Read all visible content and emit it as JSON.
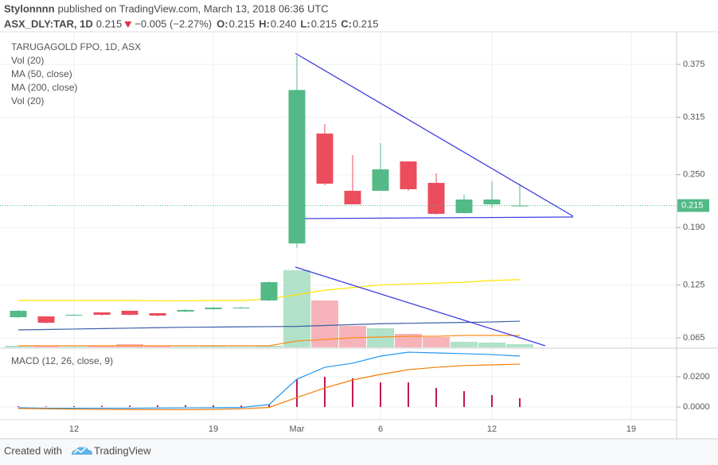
{
  "header": {
    "author": "Stylonnnn",
    "published": "published on TradingView.com, March 13, 2018 06:36 UTC"
  },
  "quote": {
    "symbol": "ASX_DLY:TAR, 1D",
    "last": "0.215",
    "change": "−0.005 (−2.27%)",
    "ohlc": [
      {
        "label": "O:",
        "value": "0.215"
      },
      {
        "label": "H:",
        "value": "0.240"
      },
      {
        "label": "L:",
        "value": "0.215"
      },
      {
        "label": "C:",
        "value": "0.215"
      }
    ]
  },
  "chart_data": [
    {
      "type": "candlestick",
      "title": "TARUGAGOLD FPO, 1D, ASX",
      "categories": [
        null,
        null,
        "12",
        null,
        null,
        null,
        null,
        "19",
        null,
        null,
        "Mar",
        null,
        null,
        "6",
        null,
        null,
        null,
        "12",
        null,
        null,
        null,
        null,
        "19"
      ],
      "open": [
        0.0884,
        0.0893,
        0.0902,
        0.0939,
        0.0957,
        0.093,
        0.0948,
        0.0975,
        0.0984,
        0.1074,
        0.172,
        0.2966,
        0.2317,
        0.2317,
        0.265,
        0.2407,
        0.2065,
        0.2164,
        0.215,
        null,
        null,
        null,
        null
      ],
      "high": [
        0.0966,
        0.0893,
        0.092,
        0.0939,
        0.0957,
        0.093,
        0.0975,
        0.1002,
        0.1002,
        0.129,
        0.385,
        0.3074,
        0.2723,
        0.2858,
        0.265,
        0.2516,
        0.2272,
        0.2425,
        0.24,
        null,
        null,
        null,
        null
      ],
      "low": [
        0.0875,
        0.0812,
        0.0902,
        0.0902,
        0.0902,
        0.0893,
        0.0939,
        0.0966,
        0.0984,
        0.1065,
        0.167,
        0.238,
        0.2164,
        0.2317,
        0.2317,
        0.2047,
        0.2056,
        0.2128,
        0.215,
        null,
        null,
        null,
        null
      ],
      "close": [
        0.0957,
        0.0821,
        0.0911,
        0.0911,
        0.0911,
        0.0902,
        0.0966,
        0.0993,
        0.0993,
        0.1281,
        0.346,
        0.2398,
        0.2164,
        0.256,
        0.2335,
        0.2056,
        0.2218,
        0.2218,
        0.215,
        null,
        null,
        null,
        null
      ],
      "up_color": "#53b987",
      "down_color": "#eb4d5c",
      "ylim": [
        0.0542,
        0.412
      ],
      "yticks": [
        0.065,
        0.125,
        {
          "value": 0.19,
          "label": "0.190"
        },
        {
          "value": 0.25,
          "label": "0.250"
        },
        0.315,
        0.375
      ],
      "last_price": 0.215,
      "grid": true,
      "volume_ylim": [
        0,
        397
      ],
      "series": [
        {
          "name": "Vol (20)",
          "kind": "volume",
          "up_color": "#a3dcc0",
          "down_color": "#f5a7ae",
          "values": [
            2,
            2,
            1,
            2,
            4,
            2,
            1,
            2,
            1,
            2,
            97,
            59,
            27,
            24,
            17,
            13,
            7,
            6,
            4,
            null,
            null,
            null,
            null
          ]
        },
        {
          "name": "MA (50, close)",
          "kind": "price-line",
          "color": "#ffe500",
          "values": [
            0.1074,
            0.1074,
            0.1074,
            0.1074,
            0.1074,
            0.107,
            0.107,
            0.1074,
            0.1074,
            0.109,
            0.114,
            0.119,
            0.122,
            0.125,
            0.126,
            0.127,
            0.128,
            0.13,
            0.131,
            null,
            null,
            null,
            null
          ]
        },
        {
          "name": "MA (200, close)",
          "kind": "price-line",
          "color": "#3d5ea8",
          "values": [
            0.074,
            0.0745,
            0.075,
            0.0755,
            0.076,
            0.0765,
            0.077,
            0.0772,
            0.0775,
            0.0777,
            0.078,
            0.079,
            0.08,
            0.081,
            0.0815,
            0.082,
            0.0825,
            0.083,
            0.0839,
            null,
            null,
            null,
            null
          ]
        },
        {
          "name": "Vol (20)",
          "kind": "volume-line",
          "color": "#ff8c1a",
          "values": [
            2,
            2,
            2,
            2,
            2,
            2,
            2,
            2,
            2,
            2,
            8,
            10,
            12,
            13,
            14,
            14,
            15,
            15,
            15,
            null,
            null,
            null,
            null
          ]
        }
      ]
    },
    {
      "type": "macd",
      "title": "MACD (12, 26, close, 9)",
      "ylim": [
        -0.0084,
        0.0379
      ],
      "yticks": [
        {
          "value": 0,
          "label": "0.0000"
        },
        {
          "value": 0.02,
          "label": "0.0200"
        }
      ],
      "series": [
        {
          "kind": "histogram",
          "color": "#c2185b",
          "values": [
            0.0005,
            0.0004,
            0.0006,
            0.0008,
            0.0009,
            0.0011,
            0.0012,
            0.0011,
            0.0009,
            0.0019,
            0.0184,
            0.02,
            0.019,
            0.0163,
            0.0163,
            0.0126,
            0.0105,
            0.0079,
            0.0058,
            null,
            null,
            null,
            null
          ]
        },
        {
          "kind": "line",
          "color": "#2196f3",
          "values": [
            -0.0005,
            -0.0008,
            -0.0008,
            -0.0008,
            -0.0008,
            -0.0007,
            -0.0006,
            -0.0005,
            -0.0003,
            0.0016,
            0.0184,
            0.0263,
            0.029,
            0.0337,
            0.0363,
            0.0358,
            0.0353,
            0.0347,
            0.0337,
            null,
            null,
            null,
            null
          ]
        },
        {
          "kind": "line",
          "color": "#f57c00",
          "values": [
            -0.001,
            -0.0012,
            -0.0014,
            -0.0016,
            -0.0017,
            -0.0018,
            -0.0018,
            -0.0016,
            -0.0012,
            -0.0003,
            0.0063,
            0.0126,
            0.0179,
            0.0216,
            0.0247,
            0.0263,
            0.0274,
            0.0279,
            0.0284,
            null,
            null,
            null,
            null
          ]
        }
      ]
    }
  ],
  "footer": {
    "created": "Created with",
    "brand": "TradingView"
  }
}
